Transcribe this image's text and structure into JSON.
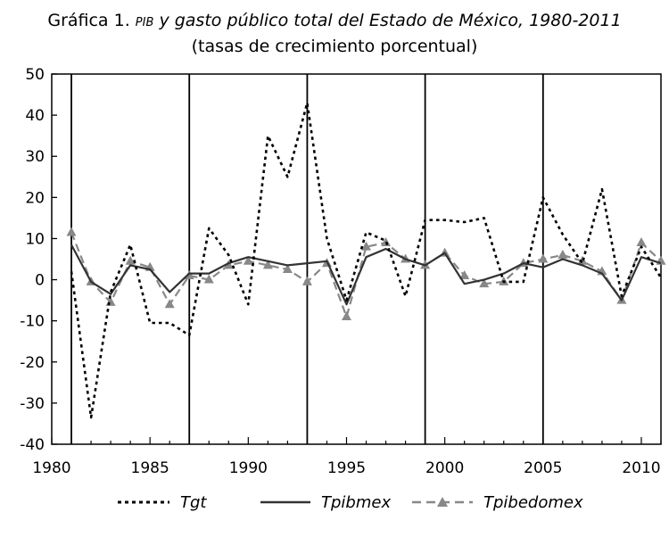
{
  "title": {
    "prefix": "Gráfica 1.",
    "abbr": "PIB",
    "rest": "y gasto público total  del Estado de México, 1980-2011",
    "subtitle": "(tasas de crecimiento porcentual)"
  },
  "chart_data": {
    "type": "line",
    "x": [
      1981,
      1982,
      1983,
      1984,
      1985,
      1986,
      1987,
      1988,
      1989,
      1990,
      1991,
      1992,
      1993,
      1994,
      1995,
      1996,
      1997,
      1998,
      1999,
      2000,
      2001,
      2002,
      2003,
      2004,
      2005,
      2006,
      2007,
      2008,
      2009,
      2010,
      2011
    ],
    "xlim": [
      1980,
      2011
    ],
    "ylim": [
      -40,
      50
    ],
    "xticks": [
      1980,
      1985,
      1990,
      1995,
      2000,
      2005,
      2010
    ],
    "yticks": [
      50,
      40,
      30,
      20,
      10,
      0,
      -10,
      -20,
      -30,
      -40
    ],
    "vertical_lines": [
      1981,
      1987,
      1993,
      1999,
      2005
    ],
    "grid": false,
    "legend_position": "bottom",
    "series": [
      {
        "name": "Tgt",
        "style": "dotted",
        "color": "#000000",
        "values": [
          2,
          -33.5,
          -3,
          8.5,
          -10.5,
          -10.5,
          -13.5,
          12.5,
          6,
          -6,
          35,
          25,
          43,
          10,
          -5,
          11.5,
          9.5,
          -4,
          14.5,
          14.5,
          14,
          15,
          -0.5,
          -0.5,
          20,
          11,
          4,
          22,
          -4,
          8,
          0.5
        ]
      },
      {
        "name": "Tpibmex",
        "style": "solid",
        "color": "#333333",
        "values": [
          8.5,
          -0.5,
          -3.5,
          3.5,
          2.5,
          -3,
          1.5,
          1.5,
          4,
          5.5,
          4.5,
          3.5,
          4,
          4.5,
          -6,
          5.5,
          7.5,
          5,
          3.5,
          6.5,
          -1,
          0,
          1.5,
          4,
          3,
          5,
          3.5,
          1.5,
          -5,
          5.5,
          4
        ]
      },
      {
        "name": "Tpibedomex",
        "style": "dashed-triangle",
        "color": "#888888",
        "values": [
          11.5,
          -0.5,
          -5.5,
          4.5,
          3,
          -6,
          1,
          0,
          3.5,
          4.5,
          3.5,
          2.5,
          -0.5,
          4,
          -9,
          8,
          9,
          5,
          3.5,
          6.5,
          1,
          -1,
          -0.5,
          4,
          5,
          6,
          4.5,
          2,
          -5,
          9,
          4.5
        ]
      }
    ]
  }
}
